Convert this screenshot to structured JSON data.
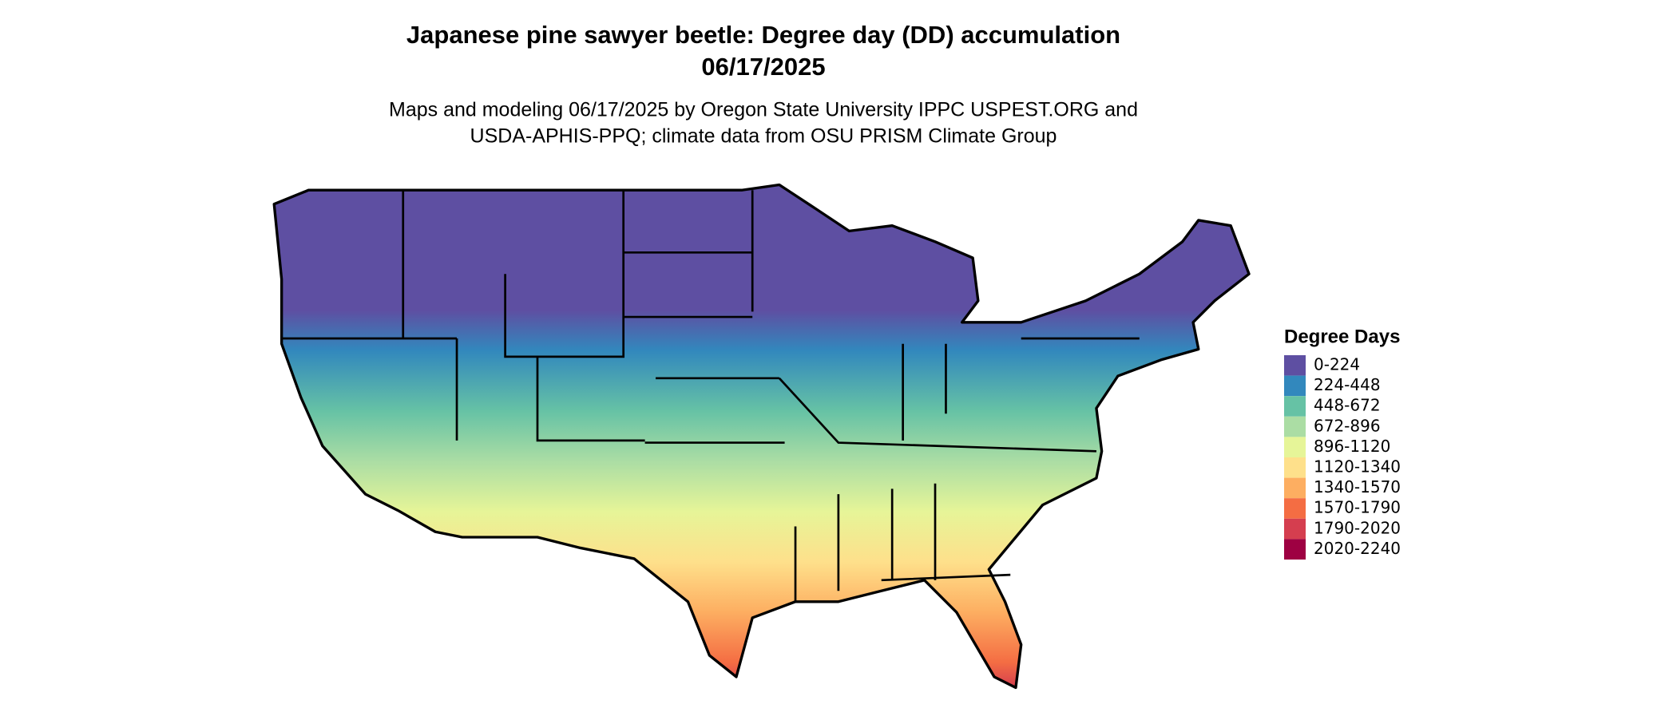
{
  "title_lines": [
    "Japanese pine sawyer beetle: Degree day (DD) accumulation",
    "06/17/2025"
  ],
  "subtitle_lines": [
    "Maps and modeling 06/17/2025 by Oregon State University IPPC USPEST.ORG and",
    "USDA-APHIS-PPQ; climate data from OSU PRISM Climate Group"
  ],
  "legend": {
    "title": "Degree Days",
    "items": [
      {
        "label": "0-224",
        "color": "#5e4fa2"
      },
      {
        "label": "224-448",
        "color": "#3288bd"
      },
      {
        "label": "448-672",
        "color": "#66c2a5"
      },
      {
        "label": "672-896",
        "color": "#abdda4"
      },
      {
        "label": "896-1120",
        "color": "#e6f598"
      },
      {
        "label": "1120-1340",
        "color": "#fee08b"
      },
      {
        "label": "1340-1570",
        "color": "#fdae61"
      },
      {
        "label": "1570-1790",
        "color": "#f46d43"
      },
      {
        "label": "1790-2020",
        "color": "#d53e4f"
      },
      {
        "label": "2020-2240",
        "color": "#9e0142"
      }
    ]
  }
}
